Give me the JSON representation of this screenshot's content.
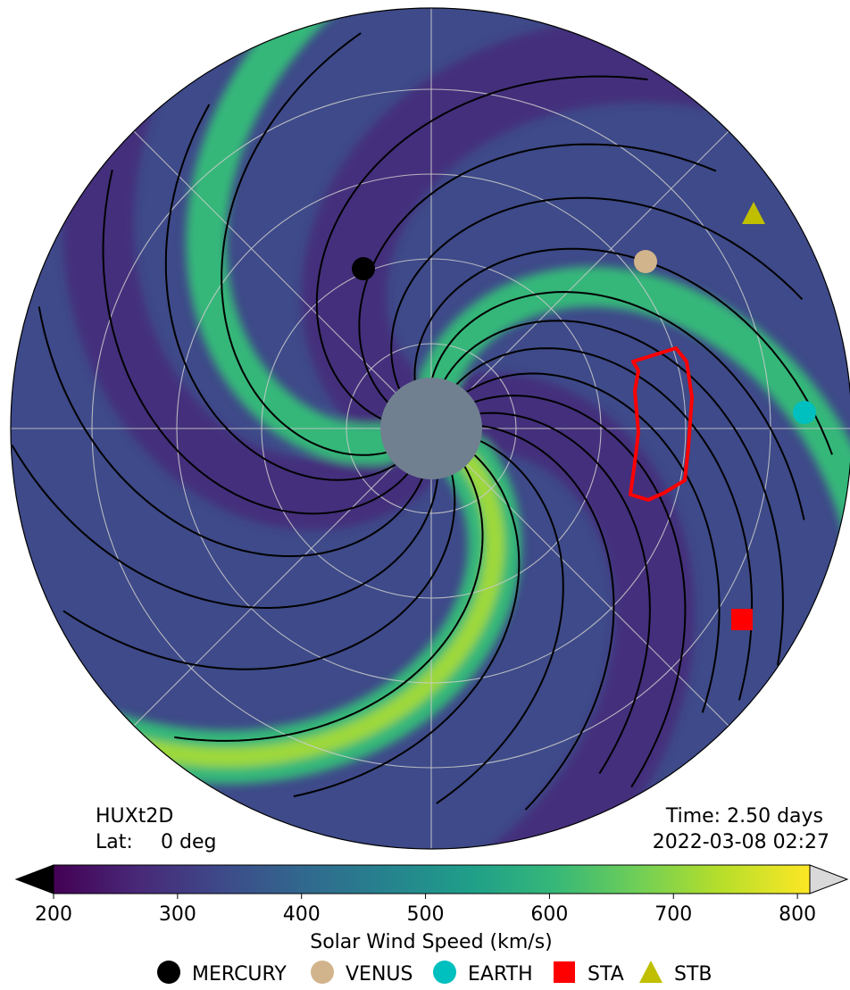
{
  "chart_data": {
    "type": "heatmap",
    "projection": "polar",
    "model_label": "HUXt2D",
    "lat_label": "Lat:",
    "lat_value": "0 deg",
    "time_label": "Time: 2.50 days",
    "date_label": "2022-03-08 02:27",
    "colorbar": {
      "label": "Solar Wind Speed (km/s)",
      "vmin": 200,
      "vmax": 810,
      "ticks": [
        "200",
        "300",
        "400",
        "500",
        "600",
        "700",
        "800"
      ],
      "colormap": "viridis",
      "extend": "both"
    },
    "grid": true,
    "legend_position": "bottom",
    "bodies": [
      {
        "name": "MERCURY",
        "marker": "circle",
        "color": "#000000"
      },
      {
        "name": "VENUS",
        "marker": "circle",
        "color": "#d2b48c"
      },
      {
        "name": "EARTH",
        "marker": "circle",
        "color": "#00bfbf"
      },
      {
        "name": "STA",
        "marker": "square",
        "color": "#ff0000"
      },
      {
        "name": "STB",
        "marker": "triangle",
        "color": "#bfbf00"
      }
    ],
    "colors": {
      "background": "#3e4a89",
      "slow_wind": "#472c7a",
      "fast_stream": "#35b779",
      "fast_peak": "#a8db34",
      "sun": "#708090",
      "cme_boundary": "#ff0000",
      "field_lines": "#000000",
      "grid": "#cccccc"
    }
  }
}
